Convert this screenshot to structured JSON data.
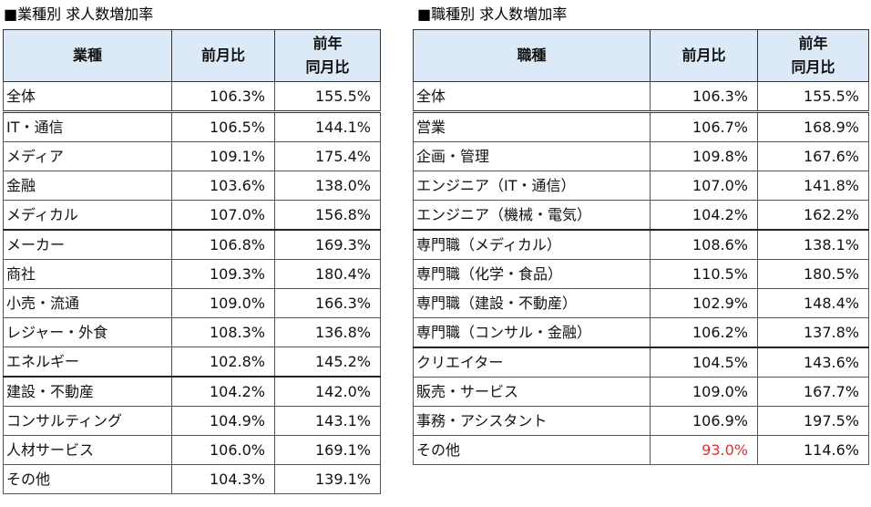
{
  "left": {
    "title": "■業種別 求人数増加率",
    "headers": {
      "name": "業種",
      "mom": "前月比",
      "yoy_line1": "前年",
      "yoy_line2": "同月比"
    },
    "rows": [
      {
        "name": "全体",
        "mom": "106.3%",
        "yoy": "155.5%"
      },
      {
        "name": "IT・通信",
        "mom": "106.5%",
        "yoy": "144.1%"
      },
      {
        "name": "メディア",
        "mom": "109.1%",
        "yoy": "175.4%"
      },
      {
        "name": "金融",
        "mom": "103.6%",
        "yoy": "138.0%"
      },
      {
        "name": "メディカル",
        "mom": "107.0%",
        "yoy": "156.8%"
      },
      {
        "name": "メーカー",
        "mom": "106.8%",
        "yoy": "169.3%"
      },
      {
        "name": "商社",
        "mom": "109.3%",
        "yoy": "180.4%"
      },
      {
        "name": "小売・流通",
        "mom": "109.0%",
        "yoy": "166.3%"
      },
      {
        "name": "レジャー・外食",
        "mom": "108.3%",
        "yoy": "136.8%"
      },
      {
        "name": "エネルギー",
        "mom": "102.8%",
        "yoy": "145.2%"
      },
      {
        "name": "建設・不動産",
        "mom": "104.2%",
        "yoy": "142.0%"
      },
      {
        "name": "コンサルティング",
        "mom": "104.9%",
        "yoy": "143.1%"
      },
      {
        "name": "人材サービス",
        "mom": "106.0%",
        "yoy": "169.1%"
      },
      {
        "name": "その他",
        "mom": "104.3%",
        "yoy": "139.1%"
      }
    ]
  },
  "right": {
    "title": "■職種別 求人数増加率",
    "headers": {
      "name": "職種",
      "mom": "前月比",
      "yoy_line1": "前年",
      "yoy_line2": "同月比"
    },
    "rows": [
      {
        "name": "全体",
        "mom": "106.3%",
        "yoy": "155.5%"
      },
      {
        "name": "営業",
        "mom": "106.7%",
        "yoy": "168.9%"
      },
      {
        "name": "企画・管理",
        "mom": "109.8%",
        "yoy": "167.6%"
      },
      {
        "name": "エンジニア（IT・通信）",
        "mom": "107.0%",
        "yoy": "141.8%"
      },
      {
        "name": "エンジニア（機械・電気）",
        "mom": "104.2%",
        "yoy": "162.2%"
      },
      {
        "name": "専門職（メディカル）",
        "mom": "108.6%",
        "yoy": "138.1%"
      },
      {
        "name": "専門職（化学・食品）",
        "mom": "110.5%",
        "yoy": "180.5%"
      },
      {
        "name": "専門職（建設・不動産）",
        "mom": "102.9%",
        "yoy": "148.4%"
      },
      {
        "name": "専門職（コンサル・金融）",
        "mom": "106.2%",
        "yoy": "137.8%"
      },
      {
        "name": "クリエイター",
        "mom": "104.5%",
        "yoy": "143.6%"
      },
      {
        "name": "販売・サービス",
        "mom": "109.0%",
        "yoy": "167.7%"
      },
      {
        "name": "事務・アシスタント",
        "mom": "106.9%",
        "yoy": "197.5%"
      },
      {
        "name": "その他",
        "mom": "93.0%",
        "yoy": "114.6%"
      }
    ]
  },
  "colors": {
    "header_bg": "#dceaf7",
    "negative": "#e03030"
  }
}
